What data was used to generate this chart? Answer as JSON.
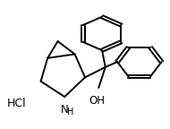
{
  "background_color": "#ffffff",
  "bond_color": "#000000",
  "bond_lw": 1.4,
  "hcl_label": "HCl",
  "nh_label": "NH",
  "oh_label": "OH",
  "figsize": [
    1.9,
    1.44
  ],
  "dpi": 100
}
